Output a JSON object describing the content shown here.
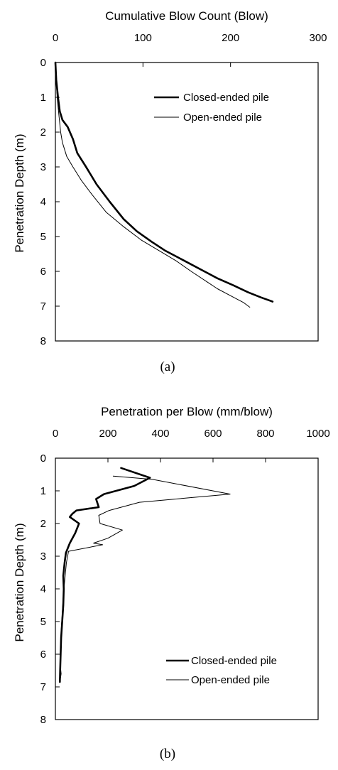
{
  "chart_data": [
    {
      "type": "line",
      "caption": "(a)",
      "xlabel": "Cumulative Blow Count (Blow)",
      "ylabel": "Penetration Depth (m)",
      "xlim": [
        0,
        300
      ],
      "ylim": [
        0,
        8
      ],
      "x_axis_position": "top",
      "y_inverted": true,
      "x_ticks": [
        "0",
        "100",
        "200",
        "300"
      ],
      "y_ticks": [
        "0",
        "1",
        "2",
        "3",
        "4",
        "5",
        "6",
        "7",
        "8"
      ],
      "legend_position": "top-right",
      "series": [
        {
          "name": "Closed-ended pile",
          "style": "thick",
          "points": [
            [
              0,
              0
            ],
            [
              1,
              0.5
            ],
            [
              3,
              1.0
            ],
            [
              5,
              1.4
            ],
            [
              8,
              1.65
            ],
            [
              14,
              1.85
            ],
            [
              20,
              2.2
            ],
            [
              25,
              2.6
            ],
            [
              35,
              3.0
            ],
            [
              47,
              3.5
            ],
            [
              62,
              4.0
            ],
            [
              78,
              4.5
            ],
            [
              93,
              4.85
            ],
            [
              110,
              5.15
            ],
            [
              125,
              5.4
            ],
            [
              140,
              5.6
            ],
            [
              155,
              5.8
            ],
            [
              170,
              6.0
            ],
            [
              185,
              6.2
            ],
            [
              203,
              6.4
            ],
            [
              220,
              6.6
            ],
            [
              235,
              6.75
            ],
            [
              248,
              6.87
            ]
          ]
        },
        {
          "name": "Open-ended pile",
          "style": "thin",
          "points": [
            [
              0,
              0
            ],
            [
              1,
              0.5
            ],
            [
              2,
              1.0
            ],
            [
              4,
              1.5
            ],
            [
              6,
              2.0
            ],
            [
              8,
              2.3
            ],
            [
              13,
              2.7
            ],
            [
              20,
              3.0
            ],
            [
              30,
              3.4
            ],
            [
              42,
              3.8
            ],
            [
              58,
              4.3
            ],
            [
              77,
              4.7
            ],
            [
              98,
              5.1
            ],
            [
              118,
              5.4
            ],
            [
              138,
              5.7
            ],
            [
              155,
              6.0
            ],
            [
              173,
              6.3
            ],
            [
              185,
              6.5
            ],
            [
              200,
              6.7
            ],
            [
              215,
              6.9
            ],
            [
              222,
              7.03
            ]
          ]
        }
      ]
    },
    {
      "type": "line",
      "caption": "(b)",
      "xlabel": "Penetration per Blow (mm/blow)",
      "ylabel": "Penetration Depth (m)",
      "xlim": [
        0,
        1000
      ],
      "ylim": [
        0,
        8
      ],
      "x_axis_position": "top",
      "y_inverted": true,
      "x_ticks": [
        "0",
        "200",
        "400",
        "600",
        "800",
        "1000"
      ],
      "y_ticks": [
        "0",
        "1",
        "2",
        "3",
        "4",
        "5",
        "6",
        "7",
        "8"
      ],
      "legend_position": "bottom-right",
      "series": [
        {
          "name": "Closed-ended pile",
          "style": "thick",
          "points": [
            [
              250,
              0.3
            ],
            [
              360,
              0.6
            ],
            [
              300,
              0.85
            ],
            [
              185,
              1.1
            ],
            [
              155,
              1.25
            ],
            [
              165,
              1.5
            ],
            [
              80,
              1.6
            ],
            [
              65,
              1.7
            ],
            [
              55,
              1.8
            ],
            [
              90,
              2.0
            ],
            [
              75,
              2.3
            ],
            [
              55,
              2.6
            ],
            [
              40,
              2.9
            ],
            [
              35,
              3.2
            ],
            [
              30,
              3.6
            ],
            [
              32,
              4.0
            ],
            [
              30,
              4.5
            ],
            [
              26,
              5.0
            ],
            [
              22,
              5.5
            ],
            [
              20,
              6.0
            ],
            [
              18,
              6.5
            ],
            [
              17,
              6.85
            ]
          ]
        },
        {
          "name": "Open-ended pile",
          "style": "thin",
          "points": [
            [
              220,
              0.55
            ],
            [
              370,
              0.65
            ],
            [
              665,
              1.1
            ],
            [
              320,
              1.35
            ],
            [
              205,
              1.6
            ],
            [
              165,
              1.75
            ],
            [
              170,
              2.0
            ],
            [
              255,
              2.2
            ],
            [
              200,
              2.45
            ],
            [
              145,
              2.6
            ],
            [
              180,
              2.65
            ],
            [
              50,
              2.85
            ],
            [
              42,
              3.2
            ],
            [
              36,
              3.7
            ],
            [
              30,
              4.2
            ],
            [
              26,
              4.8
            ],
            [
              22,
              5.3
            ],
            [
              20,
              5.8
            ],
            [
              18,
              6.3
            ],
            [
              22,
              6.6
            ],
            [
              17,
              6.85
            ]
          ]
        }
      ]
    }
  ]
}
